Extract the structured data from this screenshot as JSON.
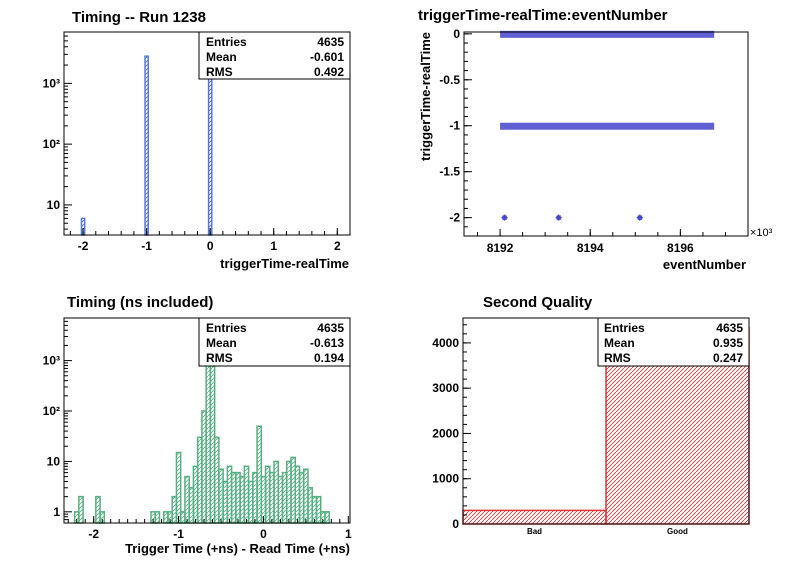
{
  "colors": {
    "hist1": "#5577dd",
    "hist_pad1": "#4a6fcf",
    "hist3": "#55b080",
    "scatter": "#4444cc",
    "hist4": "#dd3333"
  },
  "chart_data": [
    {
      "type": "bar",
      "title": "Timing -- Run 1238",
      "xlabel": "triggerTime-realTime",
      "ylabel": "",
      "xlim": [
        -2.3,
        2.2
      ],
      "ylog": true,
      "ylim": [
        3.2,
        7000
      ],
      "xticks": [
        -2,
        -1,
        0,
        1,
        2
      ],
      "xtick_labels": [
        "-2",
        "-1",
        "0",
        "1",
        "2"
      ],
      "yticks": [
        10,
        100,
        1000
      ],
      "ytick_labels": [
        "10",
        "10²",
        "10³"
      ],
      "bin_width": 0.05,
      "bins": [
        {
          "x": -2.0,
          "value": 6
        },
        {
          "x": -1.0,
          "value": 2800
        },
        {
          "x": 0.0,
          "value": 1700
        }
      ],
      "stats": [
        {
          "label": "Entries",
          "value": "4635"
        },
        {
          "label": "Mean",
          "value": "-0.601"
        },
        {
          "label": "RMS",
          "value": "0.492"
        }
      ]
    },
    {
      "type": "scatter",
      "title": "triggerTime-realTime:eventNumber",
      "xlabel": "eventNumber",
      "ylabel": "triggerTime-realTime",
      "x_multiplier": "×10³",
      "xlim": [
        8191.2,
        8197.5
      ],
      "ylim": [
        -2.2,
        0.02
      ],
      "xticks": [
        8192,
        8194,
        8196
      ],
      "xtick_labels": [
        "8192",
        "8194",
        "8196"
      ],
      "yticks": [
        0,
        -0.5,
        -1,
        -1.5,
        -2
      ],
      "ytick_labels": [
        "0",
        "-0.5",
        "-1",
        "-1.5",
        "-2"
      ],
      "bands": [
        {
          "y": 0,
          "x_start": 8192.0,
          "x_end": 8196.75
        },
        {
          "y": -1,
          "x_start": 8192.0,
          "x_end": 8196.75
        }
      ],
      "points": [
        {
          "x": 8192.1,
          "y": -2
        },
        {
          "x": 8193.3,
          "y": -2
        },
        {
          "x": 8195.1,
          "y": -2
        }
      ]
    },
    {
      "type": "bar",
      "title": "Timing (ns included)",
      "xlabel": "Trigger Time (+ns) - Read Time (+ns)",
      "ylabel": "",
      "xlim": [
        -2.35,
        1.02
      ],
      "ylog": true,
      "ylim": [
        0.6,
        7000
      ],
      "xticks": [
        -2,
        -1,
        0,
        1
      ],
      "xtick_labels": [
        "-2",
        "-1",
        "0",
        "1"
      ],
      "yticks": [
        1,
        10,
        100,
        1000
      ],
      "ytick_labels": [
        "1",
        "10",
        "10²",
        "10³"
      ],
      "bin_width": 0.05,
      "bins": [
        {
          "x": -2.2,
          "value": 1
        },
        {
          "x": -2.15,
          "value": 2
        },
        {
          "x": -1.95,
          "value": 2
        },
        {
          "x": -1.9,
          "value": 1
        },
        {
          "x": -1.3,
          "value": 1
        },
        {
          "x": -1.25,
          "value": 1
        },
        {
          "x": -1.15,
          "value": 1
        },
        {
          "x": -1.1,
          "value": 1
        },
        {
          "x": -1.05,
          "value": 2
        },
        {
          "x": -1.0,
          "value": 15
        },
        {
          "x": -0.95,
          "value": 1
        },
        {
          "x": -0.9,
          "value": 5
        },
        {
          "x": -0.85,
          "value": 3
        },
        {
          "x": -0.8,
          "value": 8
        },
        {
          "x": -0.75,
          "value": 30
        },
        {
          "x": -0.7,
          "value": 100
        },
        {
          "x": -0.65,
          "value": 800
        },
        {
          "x": -0.6,
          "value": 2000
        },
        {
          "x": -0.55,
          "value": 30
        },
        {
          "x": -0.5,
          "value": 7
        },
        {
          "x": -0.45,
          "value": 4
        },
        {
          "x": -0.4,
          "value": 8
        },
        {
          "x": -0.35,
          "value": 6
        },
        {
          "x": -0.3,
          "value": 6
        },
        {
          "x": -0.25,
          "value": 5
        },
        {
          "x": -0.2,
          "value": 8
        },
        {
          "x": -0.15,
          "value": 4
        },
        {
          "x": -0.1,
          "value": 6
        },
        {
          "x": -0.05,
          "value": 50
        },
        {
          "x": 0.0,
          "value": 5
        },
        {
          "x": 0.05,
          "value": 8
        },
        {
          "x": 0.1,
          "value": 6
        },
        {
          "x": 0.15,
          "value": 10
        },
        {
          "x": 0.2,
          "value": 5
        },
        {
          "x": 0.25,
          "value": 6
        },
        {
          "x": 0.3,
          "value": 10
        },
        {
          "x": 0.35,
          "value": 12
        },
        {
          "x": 0.4,
          "value": 8
        },
        {
          "x": 0.45,
          "value": 6
        },
        {
          "x": 0.5,
          "value": 7
        },
        {
          "x": 0.55,
          "value": 3
        },
        {
          "x": 0.6,
          "value": 2
        },
        {
          "x": 0.65,
          "value": 2
        },
        {
          "x": 0.7,
          "value": 1
        },
        {
          "x": 0.75,
          "value": 1
        }
      ],
      "stats": [
        {
          "label": "Entries",
          "value": "4635"
        },
        {
          "label": "Mean",
          "value": "-0.613"
        },
        {
          "label": "RMS",
          "value": "0.194"
        }
      ]
    },
    {
      "type": "bar",
      "title": "Second Quality",
      "xlabel": "",
      "ylabel": "",
      "ylim": [
        0,
        4550
      ],
      "yticks": [
        0,
        1000,
        2000,
        3000,
        4000
      ],
      "ytick_labels": [
        "0",
        "1000",
        "2000",
        "3000",
        "4000"
      ],
      "categories": [
        "Bad",
        "Good"
      ],
      "values": [
        300,
        4335
      ],
      "stats": [
        {
          "label": "Entries",
          "value": "4635"
        },
        {
          "label": "Mean",
          "value": "0.935"
        },
        {
          "label": "RMS",
          "value": "0.247"
        }
      ]
    }
  ]
}
